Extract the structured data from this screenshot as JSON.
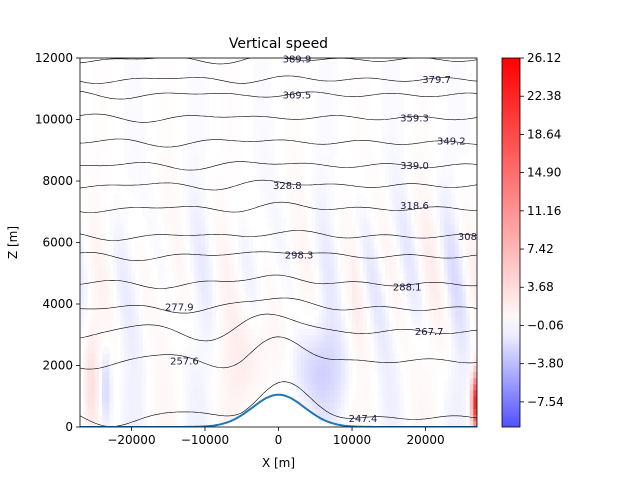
{
  "chart_data": {
    "type": "heatmap",
    "title": "Vertical speed",
    "xlabel": "X [m]",
    "ylabel": "Z [m]",
    "xlim": [
      -27000,
      27000
    ],
    "ylim": [
      0,
      12000
    ],
    "x_ticks": [
      -20000,
      -10000,
      0,
      10000,
      20000
    ],
    "x_tick_labels": [
      "−20000",
      "−10000",
      "0",
      "10000",
      "20000"
    ],
    "y_ticks": [
      0,
      2000,
      4000,
      6000,
      8000,
      10000,
      12000
    ],
    "y_tick_labels": [
      "0",
      "2000",
      "4000",
      "6000",
      "8000",
      "10000",
      "12000"
    ],
    "colorbar": {
      "min": -10.0,
      "max": 26.12,
      "colormap": "bwr",
      "ticks": [
        26.12,
        22.38,
        18.64,
        14.9,
        11.16,
        7.42,
        3.68,
        -0.06,
        -3.8,
        -7.54
      ],
      "tick_labels": [
        "26.12",
        "22.38",
        "18.64",
        "14.90",
        "11.16",
        "7.42",
        "3.68",
        "−0.06",
        "−3.80",
        "−7.54"
      ]
    },
    "terrain": {
      "type": "gaussian_hill",
      "center_x": 0,
      "height": 1050,
      "half_width": 5000,
      "color": "#1f77b4"
    },
    "contours": [
      {
        "level": 247.4,
        "label": "247.4",
        "label_x": 11500,
        "label_y": 280,
        "base_z": 300
      },
      {
        "level": 257.6,
        "label": "257.6",
        "label_x": -12800,
        "label_y": 2150,
        "base_z": 2150
      },
      {
        "level": 267.7,
        "label": "267.7",
        "label_x": 20500,
        "label_y": 3100,
        "base_z": 3100
      },
      {
        "level": 277.9,
        "label": "277.9",
        "label_x": -13500,
        "label_y": 3900,
        "base_z": 3850
      },
      {
        "level": 288.1,
        "label": "288.1",
        "label_x": 17500,
        "label_y": 4550,
        "base_z": 4650
      },
      {
        "level": 298.3,
        "label": "298.3",
        "label_x": 2800,
        "label_y": 5600,
        "base_z": 5550
      },
      {
        "level": 308.4,
        "label": "308",
        "label_x": 25700,
        "label_y": 6200,
        "base_z": 6200
      },
      {
        "level": 318.6,
        "label": "318.6",
        "label_x": 18500,
        "label_y": 7200,
        "base_z": 7100
      },
      {
        "level": 328.8,
        "label": "328.8",
        "label_x": 1200,
        "label_y": 7850,
        "base_z": 7850
      },
      {
        "level": 339.0,
        "label": "339.0",
        "label_x": 18500,
        "label_y": 8500,
        "base_z": 8500
      },
      {
        "level": 349.2,
        "label": "349.2",
        "label_x": 23500,
        "label_y": 9300,
        "base_z": 9250
      },
      {
        "level": 359.3,
        "label": "359.3",
        "label_x": 18500,
        "label_y": 10050,
        "base_z": 10050
      },
      {
        "level": 369.5,
        "label": "369.5",
        "label_x": 2500,
        "label_y": 10800,
        "base_z": 10800
      },
      {
        "level": 379.7,
        "label": "379.7",
        "label_x": 21500,
        "label_y": 11300,
        "base_z": 11300
      },
      {
        "level": 389.9,
        "label": "389.9",
        "label_x": 2500,
        "label_y": 11970,
        "base_z": 11950
      }
    ]
  }
}
